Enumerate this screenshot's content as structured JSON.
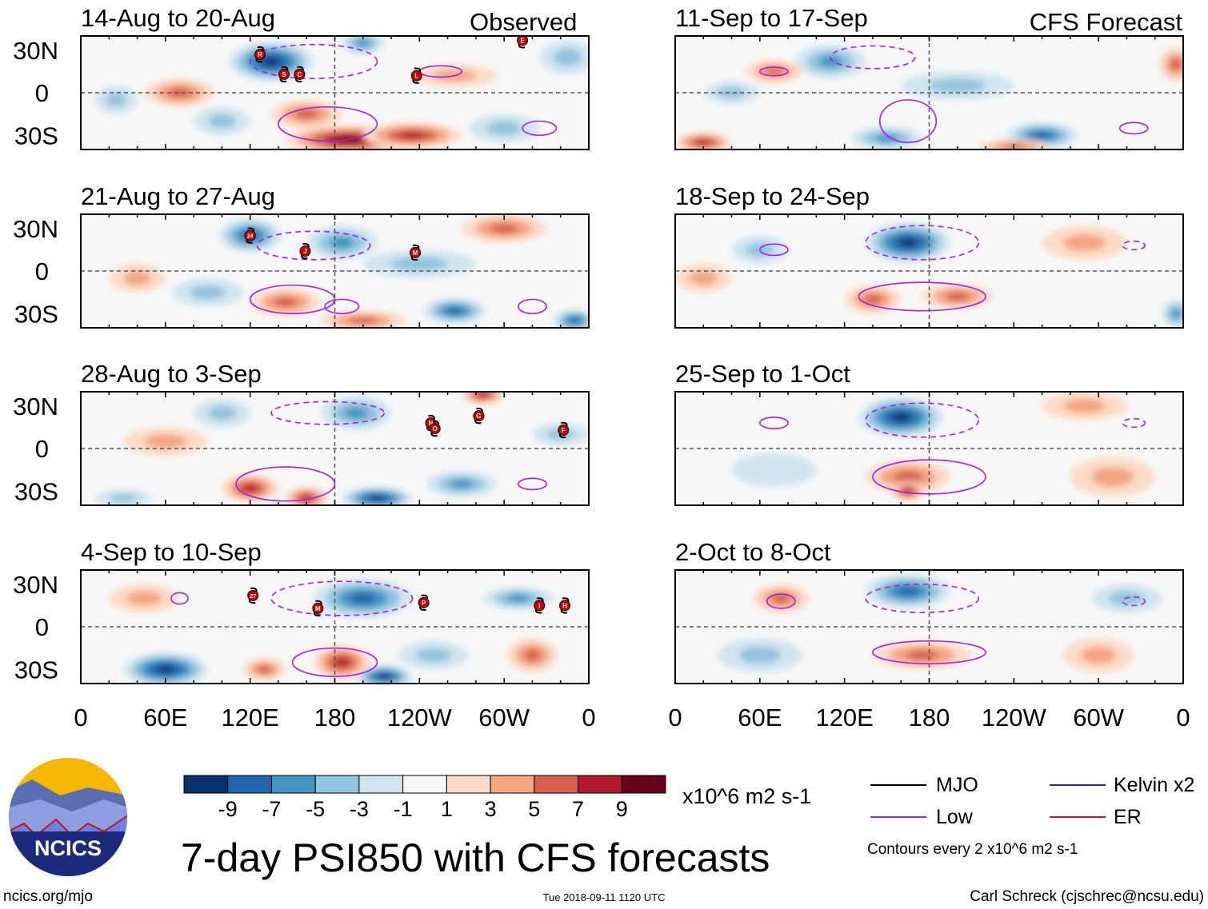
{
  "chart_data": {
    "type": "heatmap",
    "title": "7-day PSI850 with CFS forecasts",
    "units": "x10^6 m2 s-1",
    "column_labels": [
      "Observed",
      "CFS Forecast"
    ],
    "x_ticks": [
      {
        "lon": 0,
        "label": "0"
      },
      {
        "lon": 60,
        "label": "60E"
      },
      {
        "lon": 120,
        "label": "120E"
      },
      {
        "lon": 180,
        "label": "180"
      },
      {
        "lon": 240,
        "label": "120W"
      },
      {
        "lon": 300,
        "label": "60W"
      },
      {
        "lon": 360,
        "label": "0"
      }
    ],
    "y_ticks": [
      {
        "lat": 30,
        "label": "30N"
      },
      {
        "lat": 0,
        "label": "0"
      },
      {
        "lat": -30,
        "label": "30S"
      }
    ],
    "lat_range": [
      -40,
      40
    ],
    "lon_range": [
      0,
      360
    ],
    "colorbar": {
      "levels": [
        "-9",
        "-7",
        "-5",
        "-3",
        "-1",
        "1",
        "3",
        "5",
        "7",
        "9"
      ],
      "colors": [
        "#08306b",
        "#2166ac",
        "#4393c3",
        "#92c5de",
        "#d1e5f0",
        "#f7f7f7",
        "#fddbc7",
        "#f4a582",
        "#d6604d",
        "#b2182b",
        "#67001f"
      ]
    },
    "panels": [
      {
        "title": "14-Aug to 20-Aug",
        "column": 0,
        "anomalies": [
          {
            "lon": 135,
            "lat": 22,
            "val": -9,
            "dlon": 30,
            "dlat": 14
          },
          {
            "lon": 70,
            "lat": 0,
            "val": 5,
            "dlon": 25,
            "dlat": 10
          },
          {
            "lon": 190,
            "lat": -33,
            "val": 9,
            "dlon": 45,
            "dlat": 10
          },
          {
            "lon": 160,
            "lat": -15,
            "val": 5,
            "dlon": 25,
            "dlat": 10
          },
          {
            "lon": 235,
            "lat": -30,
            "val": 7,
            "dlon": 35,
            "dlat": 9
          },
          {
            "lon": 25,
            "lat": -5,
            "val": -3,
            "dlon": 15,
            "dlat": 10
          },
          {
            "lon": 300,
            "lat": -25,
            "val": -3,
            "dlon": 25,
            "dlat": 10
          },
          {
            "lon": 345,
            "lat": 25,
            "val": -3,
            "dlon": 20,
            "dlat": 12
          },
          {
            "lon": 200,
            "lat": 35,
            "val": -5,
            "dlon": 15,
            "dlat": 8
          },
          {
            "lon": 265,
            "lat": 12,
            "val": 3,
            "dlon": 30,
            "dlat": 8
          },
          {
            "lon": 100,
            "lat": -20,
            "val": -3,
            "dlon": 20,
            "dlat": 10
          }
        ],
        "contours": [
          {
            "lon": 165,
            "lat": 22,
            "dlon": 45,
            "dlat": 12,
            "sign": -1
          },
          {
            "lon": 175,
            "lat": -22,
            "dlon": 35,
            "dlat": 12,
            "sign": 1
          },
          {
            "lon": 255,
            "lat": 15,
            "dlon": 15,
            "dlat": 4,
            "sign": 1
          },
          {
            "lon": 325,
            "lat": -25,
            "dlon": 12,
            "dlat": 5,
            "sign": 1
          }
        ],
        "storms": [
          {
            "lon": 127,
            "lat": 27,
            "label": "R"
          },
          {
            "lon": 144,
            "lat": 13,
            "label": "S"
          },
          {
            "lon": 155,
            "lat": 13,
            "label": "C"
          },
          {
            "lon": 238,
            "lat": 12,
            "label": "L"
          },
          {
            "lon": 313,
            "lat": 37,
            "label": "E"
          }
        ]
      },
      {
        "title": "21-Aug to 27-Aug",
        "column": 0,
        "anomalies": [
          {
            "lon": 120,
            "lat": 25,
            "val": -7,
            "dlon": 22,
            "dlat": 12
          },
          {
            "lon": 185,
            "lat": 20,
            "val": -5,
            "dlon": 25,
            "dlat": 12
          },
          {
            "lon": 145,
            "lat": -22,
            "val": 5,
            "dlon": 25,
            "dlat": 10
          },
          {
            "lon": 40,
            "lat": -5,
            "val": 3,
            "dlon": 20,
            "dlat": 10
          },
          {
            "lon": 265,
            "lat": -28,
            "val": -7,
            "dlon": 22,
            "dlat": 9
          },
          {
            "lon": 350,
            "lat": -35,
            "val": -7,
            "dlon": 15,
            "dlat": 8
          },
          {
            "lon": 300,
            "lat": 30,
            "val": 5,
            "dlon": 30,
            "dlat": 10
          },
          {
            "lon": 200,
            "lat": -35,
            "val": 5,
            "dlon": 30,
            "dlat": 7
          },
          {
            "lon": 90,
            "lat": -15,
            "val": -3,
            "dlon": 25,
            "dlat": 10
          },
          {
            "lon": 240,
            "lat": 5,
            "val": -3,
            "dlon": 40,
            "dlat": 10
          }
        ],
        "contours": [
          {
            "lon": 165,
            "lat": 18,
            "dlon": 40,
            "dlat": 10,
            "sign": -1
          },
          {
            "lon": 150,
            "lat": -20,
            "dlon": 30,
            "dlat": 10,
            "sign": 1
          },
          {
            "lon": 185,
            "lat": -25,
            "dlon": 12,
            "dlat": 5,
            "sign": 1
          },
          {
            "lon": 320,
            "lat": -25,
            "dlon": 10,
            "dlat": 5,
            "sign": 1
          }
        ],
        "storms": [
          {
            "lon": 120,
            "lat": 25,
            "label": "24"
          },
          {
            "lon": 159,
            "lat": 14,
            "label": "J"
          },
          {
            "lon": 237,
            "lat": 13,
            "label": "M"
          }
        ]
      },
      {
        "title": "28-Aug to 3-Sep",
        "column": 0,
        "anomalies": [
          {
            "lon": 195,
            "lat": 25,
            "val": -5,
            "dlon": 25,
            "dlat": 12
          },
          {
            "lon": 120,
            "lat": -28,
            "val": 7,
            "dlon": 20,
            "dlat": 10
          },
          {
            "lon": 160,
            "lat": -35,
            "val": 7,
            "dlon": 15,
            "dlat": 8
          },
          {
            "lon": 210,
            "lat": -35,
            "val": -9,
            "dlon": 25,
            "dlat": 8
          },
          {
            "lon": 270,
            "lat": -25,
            "val": -5,
            "dlon": 25,
            "dlat": 9
          },
          {
            "lon": 285,
            "lat": 38,
            "val": 7,
            "dlon": 15,
            "dlat": 7
          },
          {
            "lon": 100,
            "lat": 25,
            "val": -3,
            "dlon": 20,
            "dlat": 10
          },
          {
            "lon": 60,
            "lat": 5,
            "val": 3,
            "dlon": 30,
            "dlat": 10
          },
          {
            "lon": 340,
            "lat": 10,
            "val": -3,
            "dlon": 20,
            "dlat": 8
          },
          {
            "lon": 30,
            "lat": -35,
            "val": -3,
            "dlon": 20,
            "dlat": 6
          }
        ],
        "contours": [
          {
            "lon": 175,
            "lat": 25,
            "dlon": 40,
            "dlat": 8,
            "sign": -1
          },
          {
            "lon": 145,
            "lat": -25,
            "dlon": 35,
            "dlat": 12,
            "sign": 1
          },
          {
            "lon": 320,
            "lat": -25,
            "dlon": 10,
            "dlat": 4,
            "sign": 1
          }
        ],
        "storms": [
          {
            "lon": 248,
            "lat": 18,
            "label": "N"
          },
          {
            "lon": 251,
            "lat": 14,
            "label": "O"
          },
          {
            "lon": 282,
            "lat": 23,
            "label": "G"
          },
          {
            "lon": 342,
            "lat": 13,
            "label": "F"
          }
        ]
      },
      {
        "title": "4-Sep to 10-Sep",
        "column": 0,
        "anomalies": [
          {
            "lon": 60,
            "lat": -30,
            "val": -9,
            "dlon": 30,
            "dlat": 12
          },
          {
            "lon": 200,
            "lat": 20,
            "val": -7,
            "dlon": 35,
            "dlat": 14
          },
          {
            "lon": 215,
            "lat": -35,
            "val": -9,
            "dlon": 20,
            "dlat": 8
          },
          {
            "lon": 185,
            "lat": -25,
            "val": 7,
            "dlon": 20,
            "dlat": 12
          },
          {
            "lon": 320,
            "lat": -20,
            "val": 5,
            "dlon": 18,
            "dlat": 12
          },
          {
            "lon": 310,
            "lat": 20,
            "val": -5,
            "dlon": 25,
            "dlat": 8
          },
          {
            "lon": 45,
            "lat": 20,
            "val": 3,
            "dlon": 25,
            "dlat": 10
          },
          {
            "lon": 130,
            "lat": -30,
            "val": 5,
            "dlon": 15,
            "dlat": 8
          },
          {
            "lon": 250,
            "lat": -20,
            "val": -3,
            "dlon": 25,
            "dlat": 10
          }
        ],
        "contours": [
          {
            "lon": 185,
            "lat": 20,
            "dlon": 50,
            "dlat": 12,
            "sign": -1
          },
          {
            "lon": 180,
            "lat": -25,
            "dlon": 30,
            "dlat": 10,
            "sign": 1
          },
          {
            "lon": 70,
            "lat": 20,
            "dlon": 6,
            "dlat": 4,
            "sign": 1
          }
        ],
        "storms": [
          {
            "lon": 122,
            "lat": 22,
            "label": "27"
          },
          {
            "lon": 168,
            "lat": 13,
            "label": "M"
          },
          {
            "lon": 243,
            "lat": 17,
            "label": "P"
          },
          {
            "lon": 325,
            "lat": 15,
            "label": "I"
          },
          {
            "lon": 343,
            "lat": 15,
            "label": "H"
          }
        ]
      },
      {
        "title": "11-Sep to 17-Sep",
        "column": 1,
        "anomalies": [
          {
            "lon": 110,
            "lat": 22,
            "val": -5,
            "dlon": 25,
            "dlat": 12
          },
          {
            "lon": 70,
            "lat": 15,
            "val": 5,
            "dlon": 20,
            "dlat": 8
          },
          {
            "lon": 260,
            "lat": -30,
            "val": -7,
            "dlon": 25,
            "dlat": 9
          },
          {
            "lon": 150,
            "lat": -32,
            "val": -5,
            "dlon": 25,
            "dlat": 8
          },
          {
            "lon": 20,
            "lat": -35,
            "val": 7,
            "dlon": 20,
            "dlat": 7
          },
          {
            "lon": 240,
            "lat": -38,
            "val": 5,
            "dlon": 25,
            "dlat": 5
          },
          {
            "lon": 355,
            "lat": 20,
            "val": 5,
            "dlon": 12,
            "dlat": 12
          },
          {
            "lon": 40,
            "lat": 0,
            "val": -3,
            "dlon": 20,
            "dlat": 8
          },
          {
            "lon": 200,
            "lat": 5,
            "val": -3,
            "dlon": 40,
            "dlat": 10
          }
        ],
        "contours": [
          {
            "lon": 140,
            "lat": 25,
            "dlon": 30,
            "dlat": 8,
            "sign": -1
          },
          {
            "lon": 165,
            "lat": -20,
            "dlon": 20,
            "dlat": 15,
            "sign": 1
          },
          {
            "lon": 70,
            "lat": 15,
            "dlon": 10,
            "dlat": 3,
            "sign": 1
          },
          {
            "lon": 325,
            "lat": -25,
            "dlon": 10,
            "dlat": 4,
            "sign": 1
          }
        ],
        "storms": []
      },
      {
        "title": "18-Sep to 24-Sep",
        "column": 1,
        "anomalies": [
          {
            "lon": 165,
            "lat": 20,
            "val": -9,
            "dlon": 30,
            "dlat": 14
          },
          {
            "lon": 200,
            "lat": -18,
            "val": 5,
            "dlon": 25,
            "dlat": 9
          },
          {
            "lon": 140,
            "lat": -20,
            "val": 5,
            "dlon": 20,
            "dlat": 10
          },
          {
            "lon": 290,
            "lat": 20,
            "val": 3,
            "dlon": 30,
            "dlat": 12
          },
          {
            "lon": 355,
            "lat": -30,
            "val": -5,
            "dlon": 10,
            "dlat": 10
          },
          {
            "lon": 60,
            "lat": 15,
            "val": -3,
            "dlon": 20,
            "dlat": 10
          },
          {
            "lon": 20,
            "lat": -5,
            "val": 3,
            "dlon": 20,
            "dlat": 10
          }
        ],
        "contours": [
          {
            "lon": 175,
            "lat": 20,
            "dlon": 40,
            "dlat": 12,
            "sign": -1
          },
          {
            "lon": 175,
            "lat": -18,
            "dlon": 45,
            "dlat": 10,
            "sign": 1
          },
          {
            "lon": 70,
            "lat": 15,
            "dlon": 10,
            "dlat": 4,
            "sign": 1
          },
          {
            "lon": 325,
            "lat": 18,
            "dlon": 8,
            "dlat": 3,
            "sign": -1
          }
        ],
        "storms": []
      },
      {
        "title": "25-Sep to 1-Oct",
        "column": 1,
        "anomalies": [
          {
            "lon": 160,
            "lat": 22,
            "val": -9,
            "dlon": 30,
            "dlat": 14
          },
          {
            "lon": 165,
            "lat": -20,
            "val": 5,
            "dlon": 30,
            "dlat": 12
          },
          {
            "lon": 165,
            "lat": -30,
            "val": 7,
            "dlon": 12,
            "dlat": 7
          },
          {
            "lon": 310,
            "lat": -20,
            "val": 3,
            "dlon": 30,
            "dlat": 14
          },
          {
            "lon": 290,
            "lat": 30,
            "val": 3,
            "dlon": 30,
            "dlat": 10
          },
          {
            "lon": 70,
            "lat": -15,
            "val": -1,
            "dlon": 30,
            "dlat": 12
          }
        ],
        "contours": [
          {
            "lon": 175,
            "lat": 20,
            "dlon": 40,
            "dlat": 12,
            "sign": -1
          },
          {
            "lon": 180,
            "lat": -20,
            "dlon": 40,
            "dlat": 12,
            "sign": 1
          },
          {
            "lon": 70,
            "lat": 18,
            "dlon": 10,
            "dlat": 4,
            "sign": 1
          },
          {
            "lon": 325,
            "lat": 18,
            "dlon": 8,
            "dlat": 3,
            "sign": -1
          }
        ],
        "storms": []
      },
      {
        "title": "2-Oct to 8-Oct",
        "column": 1,
        "anomalies": [
          {
            "lon": 165,
            "lat": 25,
            "val": -7,
            "dlon": 30,
            "dlat": 12
          },
          {
            "lon": 75,
            "lat": 20,
            "val": 5,
            "dlon": 20,
            "dlat": 10
          },
          {
            "lon": 175,
            "lat": -20,
            "val": 5,
            "dlon": 35,
            "dlat": 10
          },
          {
            "lon": 60,
            "lat": -20,
            "val": -3,
            "dlon": 30,
            "dlat": 12
          },
          {
            "lon": 300,
            "lat": -20,
            "val": 3,
            "dlon": 25,
            "dlat": 12
          },
          {
            "lon": 320,
            "lat": 20,
            "val": -3,
            "dlon": 25,
            "dlat": 10
          }
        ],
        "contours": [
          {
            "lon": 175,
            "lat": 20,
            "dlon": 40,
            "dlat": 10,
            "sign": -1
          },
          {
            "lon": 180,
            "lat": -18,
            "dlon": 40,
            "dlat": 8,
            "sign": 1
          },
          {
            "lon": 75,
            "lat": 18,
            "dlon": 10,
            "dlat": 5,
            "sign": 1
          },
          {
            "lon": 325,
            "lat": 18,
            "dlon": 8,
            "dlat": 3,
            "sign": -1
          }
        ],
        "storms": []
      }
    ]
  },
  "legend": {
    "items": [
      {
        "label": "MJO",
        "color": "#000000"
      },
      {
        "label": "Kelvin x2",
        "color": "#2a1fd6"
      },
      {
        "label": "Low",
        "color": "#a020f0"
      },
      {
        "label": "ER",
        "color": "#e01010"
      }
    ],
    "contours_note": "Contours every 2 x10^6 m2 s-1"
  },
  "logo": {
    "text": "NCICS"
  },
  "footer": {
    "url": "ncics.org/mjo",
    "timestamp": "Tue 2018-09-11 1120 UTC",
    "author": "Carl Schreck (cjschrec@ncsu.edu)"
  }
}
